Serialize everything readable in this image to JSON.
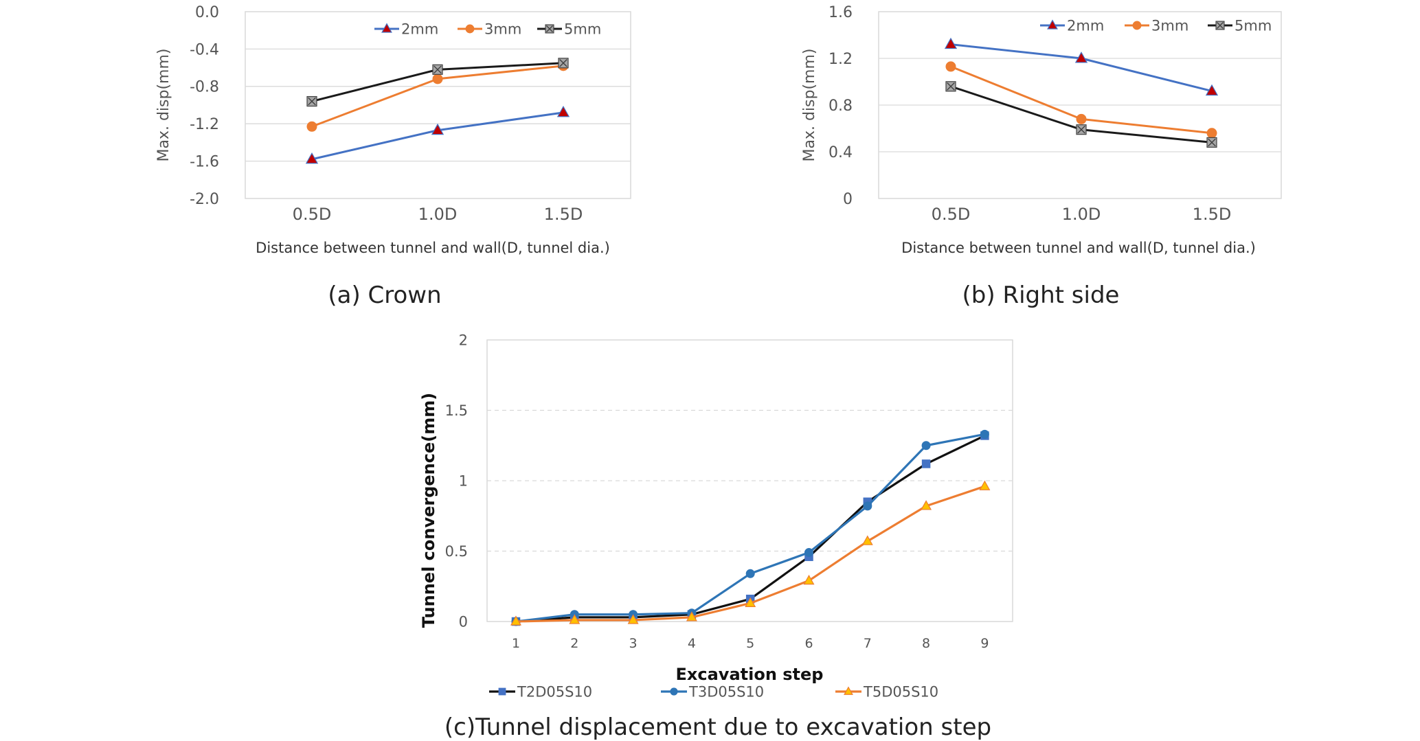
{
  "chart_data": [
    {
      "id": "crown",
      "type": "line",
      "caption": "(a) Crown",
      "xlabel": "Distance between tunnel and wall(D, tunnel dia.)",
      "ylabel": "Max. disp(mm)",
      "categories": [
        "0.5D",
        "1.0D",
        "1.5D"
      ],
      "ylim": [
        -2.0,
        0.0
      ],
      "yticks": [
        "0.0",
        "-0.4",
        "-0.8",
        "-1.2",
        "-1.6",
        "-2.0"
      ],
      "ytick_values": [
        0.0,
        -0.4,
        -0.8,
        -1.2,
        -1.6,
        -2.0
      ],
      "grid": true,
      "legend": "top-right",
      "series": [
        {
          "name": "2mm",
          "values": [
            -1.58,
            -1.27,
            -1.08
          ],
          "color": "#4472C4",
          "marker": "triangle"
        },
        {
          "name": "3mm",
          "values": [
            -1.23,
            -0.72,
            -0.58
          ],
          "color": "#ED7D31",
          "marker": "circle"
        },
        {
          "name": "5mm",
          "values": [
            -0.96,
            -0.62,
            -0.55
          ],
          "color": "#1a1a1a",
          "marker": "square-x"
        }
      ]
    },
    {
      "id": "right",
      "type": "line",
      "caption": "(b) Right side",
      "xlabel": "Distance between tunnel and wall(D, tunnel dia.)",
      "ylabel": "Max. disp(mm)",
      "categories": [
        "0.5D",
        "1.0D",
        "1.5D"
      ],
      "ylim": [
        0,
        1.6
      ],
      "yticks": [
        "1.6",
        "1.2",
        "0.8",
        "0.4",
        "0"
      ],
      "ytick_values": [
        1.6,
        1.2,
        0.8,
        0.4,
        0
      ],
      "grid": true,
      "legend": "top-right",
      "series": [
        {
          "name": "2mm",
          "values": [
            1.32,
            1.2,
            0.92
          ],
          "color": "#4472C4",
          "marker": "triangle"
        },
        {
          "name": "3mm",
          "values": [
            1.13,
            0.68,
            0.56
          ],
          "color": "#ED7D31",
          "marker": "circle"
        },
        {
          "name": "5mm",
          "values": [
            0.96,
            0.59,
            0.48
          ],
          "color": "#1a1a1a",
          "marker": "square-x"
        }
      ]
    },
    {
      "id": "convergence",
      "type": "line",
      "caption": "(c)Tunnel displacement due to excavation step",
      "xlabel": "Excavation step",
      "ylabel": "Tunnel convergence(mm)",
      "categories": [
        "1",
        "2",
        "3",
        "4",
        "5",
        "6",
        "7",
        "8",
        "9"
      ],
      "ylim": [
        0,
        2
      ],
      "yticks": [
        "2",
        "1.5",
        "1",
        "0.5",
        "0"
      ],
      "ytick_values": [
        2,
        1.5,
        1,
        0.5,
        0
      ],
      "grid": true,
      "legend": "bottom",
      "series": [
        {
          "name": "T2D05S10",
          "values": [
            0.0,
            0.03,
            0.03,
            0.05,
            0.16,
            0.46,
            0.85,
            1.12,
            1.32
          ],
          "color": "#111111",
          "marker_color": "#4472C4",
          "marker": "square"
        },
        {
          "name": "T3D05S10",
          "values": [
            0.0,
            0.05,
            0.05,
            0.06,
            0.34,
            0.49,
            0.82,
            1.25,
            1.33
          ],
          "color": "#2E75B6",
          "marker_color": "#2E75B6",
          "marker": "circle"
        },
        {
          "name": "T5D05S10",
          "values": [
            0.0,
            0.01,
            0.01,
            0.03,
            0.13,
            0.29,
            0.57,
            0.82,
            0.96
          ],
          "color": "#ED7D31",
          "marker_color": "#FFC000",
          "marker": "triangle"
        }
      ]
    }
  ]
}
